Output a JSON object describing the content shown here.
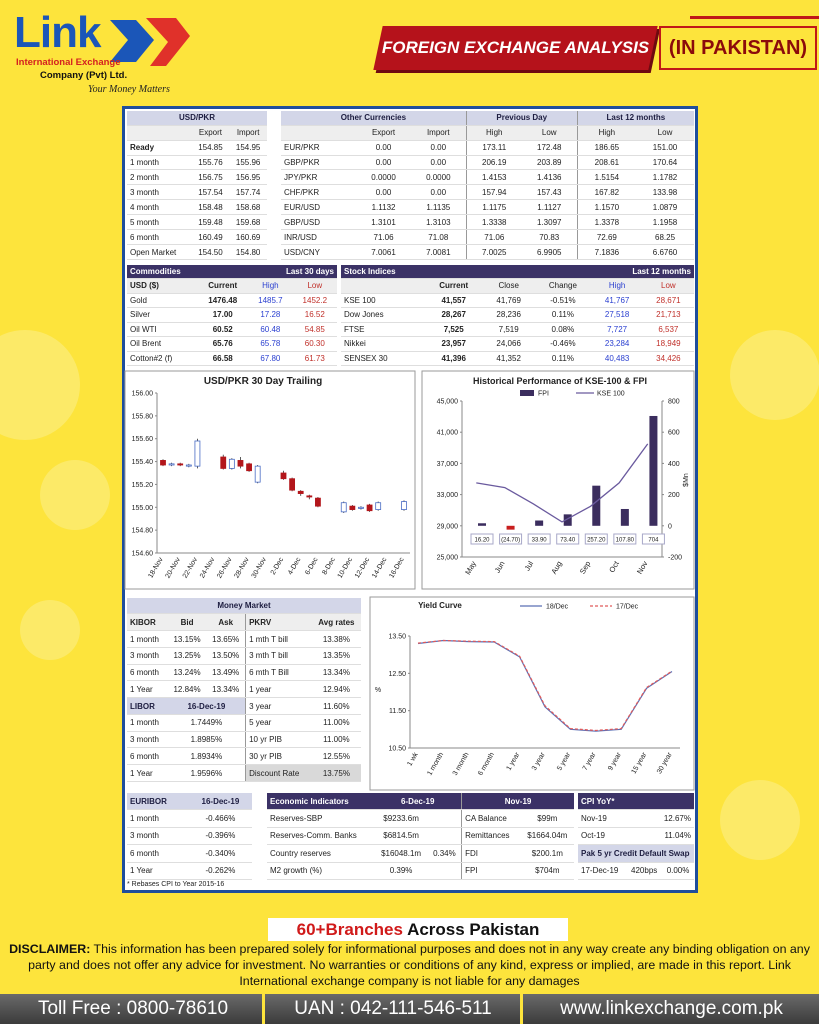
{
  "header": {
    "brand": "Link",
    "company_line1": "International Exchange",
    "company_line2": "Company (Pvt) Ltd.",
    "tagline": "Your Money Matters",
    "title": "FOREIGN EXCHANGE ANALYSIS",
    "subtitle": "(IN PAKISTAN)"
  },
  "usd_pkr": {
    "title": "USD/PKR",
    "columns": [
      "Export",
      "Import"
    ],
    "rows": [
      [
        "Ready",
        "154.85",
        "154.95"
      ],
      [
        "1 month",
        "155.76",
        "155.96"
      ],
      [
        "2 month",
        "156.75",
        "156.95"
      ],
      [
        "3 month",
        "157.54",
        "157.74"
      ],
      [
        "4 month",
        "158.48",
        "158.68"
      ],
      [
        "5 month",
        "159.48",
        "159.68"
      ],
      [
        "6 month",
        "160.49",
        "160.69"
      ],
      [
        "Open Market",
        "154.50",
        "154.80"
      ]
    ]
  },
  "currencies": {
    "groups": [
      "Other Currencies",
      "Previous Day",
      "Last 12 months"
    ],
    "columns": [
      "Export",
      "Import",
      "High",
      "Low",
      "High",
      "Low"
    ],
    "rows": [
      [
        "EUR/PKR",
        "0.00",
        "0.00",
        "173.11",
        "172.48",
        "186.65",
        "151.00"
      ],
      [
        "GBP/PKR",
        "0.00",
        "0.00",
        "206.19",
        "203.89",
        "208.61",
        "170.64"
      ],
      [
        "JPY/PKR",
        "0.0000",
        "0.0000",
        "1.4153",
        "1.4136",
        "1.5154",
        "1.1782"
      ],
      [
        "CHF/PKR",
        "0.00",
        "0.00",
        "157.94",
        "157.43",
        "167.82",
        "133.98"
      ],
      [
        "EUR/USD",
        "1.1132",
        "1.1135",
        "1.1175",
        "1.1127",
        "1.1570",
        "1.0879"
      ],
      [
        "GBP/USD",
        "1.3101",
        "1.3103",
        "1.3338",
        "1.3097",
        "1.3378",
        "1.1958"
      ],
      [
        "INR/USD",
        "71.06",
        "71.08",
        "71.06",
        "70.83",
        "72.69",
        "68.25"
      ],
      [
        "USD/CNY",
        "7.0061",
        "7.0081",
        "7.0025",
        "6.9905",
        "7.1836",
        "6.6760"
      ]
    ]
  },
  "commodities": {
    "title": "Commodities",
    "period": "Last 30 days",
    "columns": [
      "USD ($)",
      "Current",
      "High",
      "Low"
    ],
    "rows": [
      [
        "Gold",
        "1476.48",
        "1485.7",
        "1452.2"
      ],
      [
        "Silver",
        "17.00",
        "17.28",
        "16.52"
      ],
      [
        "Oil WTI",
        "60.52",
        "60.48",
        "54.85"
      ],
      [
        "Oil Brent",
        "65.76",
        "65.78",
        "60.30"
      ],
      [
        "Cotton#2 (f)",
        "66.58",
        "67.80",
        "61.73"
      ]
    ]
  },
  "stocks": {
    "title": "Stock Indices",
    "period": "Last 12 months",
    "columns": [
      "Current",
      "Close",
      "Change",
      "High",
      "Low"
    ],
    "rows": [
      [
        "KSE 100",
        "41,557",
        "41,769",
        "-0.51%",
        "41,767",
        "28,671"
      ],
      [
        "Dow Jones",
        "28,267",
        "28,236",
        "0.11%",
        "27,518",
        "21,713"
      ],
      [
        "FTSE",
        "7,525",
        "7,519",
        "0.08%",
        "7,727",
        "6,537"
      ],
      [
        "Nikkei",
        "23,957",
        "24,066",
        "-0.46%",
        "23,284",
        "18,949"
      ],
      [
        "SENSEX 30",
        "41,396",
        "41,352",
        "0.11%",
        "40,483",
        "34,426"
      ]
    ]
  },
  "chart_data": [
    {
      "type": "candlestick",
      "title": "USD/PKR 30 Day Trailing",
      "categories": [
        "18-Nov",
        null,
        "20-Nov",
        null,
        "22-Nov",
        null,
        "24-Nov",
        null,
        "26-Nov",
        null,
        "28-Nov",
        null,
        "30-Nov",
        null,
        "2-Dec",
        null,
        "4-Dec",
        null,
        "6-Dec",
        null,
        "8-Dec",
        null,
        "10-Dec",
        null,
        "12-Dec",
        null,
        "14-Dec",
        null,
        "16-Dec"
      ],
      "open": [
        155.41,
        155.37,
        155.38,
        155.36,
        155.36,
        null,
        null,
        155.44,
        155.34,
        155.41,
        155.38,
        155.22,
        null,
        null,
        155.3,
        155.25,
        155.14,
        155.1,
        155.08,
        null,
        null,
        154.96,
        155.01,
        154.99,
        155.02,
        154.98,
        null,
        null,
        154.98
      ],
      "high": [
        155.42,
        155.39,
        155.39,
        155.38,
        155.6,
        null,
        null,
        155.46,
        155.43,
        155.44,
        155.39,
        155.37,
        null,
        null,
        155.32,
        155.26,
        155.15,
        155.11,
        155.09,
        null,
        null,
        155.05,
        155.02,
        155.01,
        155.03,
        155.05,
        null,
        null,
        155.06
      ],
      "low": [
        155.36,
        155.36,
        155.36,
        155.35,
        155.34,
        null,
        null,
        155.33,
        155.33,
        155.34,
        155.31,
        155.21,
        null,
        null,
        155.24,
        155.14,
        155.1,
        155.07,
        155.0,
        null,
        null,
        154.95,
        154.97,
        154.98,
        154.96,
        154.97,
        null,
        null,
        154.97
      ],
      "close": [
        155.37,
        155.38,
        155.37,
        155.37,
        155.58,
        null,
        null,
        155.34,
        155.42,
        155.36,
        155.32,
        155.36,
        null,
        null,
        155.25,
        155.15,
        155.12,
        155.09,
        155.01,
        null,
        null,
        155.04,
        154.98,
        155.0,
        154.97,
        155.04,
        null,
        null,
        155.05
      ],
      "up_color": "#4a6cc4",
      "down_color": "#b3161b",
      "ylim": [
        154.6,
        156.0
      ],
      "yticks": [
        {
          "value": 154.6,
          "label": "154.60"
        },
        {
          "value": 154.8,
          "label": "154.80"
        },
        {
          "value": 155.0,
          "label": "155.00"
        },
        {
          "value": 155.2,
          "label": "155.20"
        },
        {
          "value": 155.4,
          "label": "155.40"
        },
        {
          "value": 155.6,
          "label": "155.60"
        },
        {
          "value": 155.8,
          "label": "155.80"
        },
        {
          "value": 156.0,
          "label": "156.00"
        }
      ]
    },
    {
      "type": "bar_line",
      "title": "Historical Performance of KSE-100 & FPI",
      "categories": [
        "May",
        "Jun",
        "Jul",
        "Aug",
        "Sep",
        "Oct",
        "Nov"
      ],
      "series": [
        {
          "name": "FPI",
          "color": "#3b2d5e",
          "negative_color": "#c81e1e",
          "axis": "y2",
          "values": [
            16.2,
            -24.7,
            33.9,
            73.4,
            257.2,
            107.8,
            704
          ],
          "value_labels": [
            "16.20",
            "(24.70)",
            "33.90",
            "73.40",
            "257.20",
            "107.80",
            "704"
          ]
        },
        {
          "name": "KSE 100",
          "color": "#6a5a9e",
          "values": [
            34500,
            33900,
            31800,
            29500,
            31500,
            34500,
            39500
          ]
        }
      ],
      "ylim": [
        25000,
        45000
      ],
      "yticks": [
        {
          "value": 25000,
          "label": "25,000"
        },
        {
          "value": 29000,
          "label": "29,000"
        },
        {
          "value": 33000,
          "label": "33,000"
        },
        {
          "value": 37000,
          "label": "37,000"
        },
        {
          "value": 41000,
          "label": "41,000"
        },
        {
          "value": 45000,
          "label": "45,000"
        }
      ],
      "y2lim": [
        -200,
        800
      ],
      "y2ticks": [
        -200,
        0,
        200,
        400,
        600,
        800
      ],
      "y2label": "$Mn"
    },
    {
      "type": "line",
      "title": "Yield Curve",
      "categories": [
        "1 wk",
        "1 month",
        "3 month",
        "6 month",
        "1 year",
        "3 year",
        "5 year",
        "7 year",
        "9 year",
        "15 year",
        "30 year"
      ],
      "series": [
        {
          "name": "18/Dec",
          "color": "#5b6fb5",
          "values": [
            13.3,
            13.38,
            13.35,
            13.34,
            12.94,
            11.6,
            11.0,
            10.95,
            11.0,
            12.1,
            12.55
          ]
        },
        {
          "name": "17/Dec",
          "color": "#e05a5a",
          "dashed": true,
          "values": [
            13.31,
            13.38,
            13.36,
            13.35,
            12.96,
            11.63,
            11.02,
            10.97,
            11.02,
            12.12,
            12.56
          ]
        }
      ],
      "ylim": [
        10.5,
        13.5
      ],
      "yticks": [
        {
          "value": 10.5,
          "label": "10.50"
        },
        {
          "value": 11.5,
          "label": "11.50"
        },
        {
          "value": 12.5,
          "label": "12.50"
        },
        {
          "value": 13.5,
          "label": "13.50"
        }
      ],
      "ylabel": "%"
    }
  ],
  "money_market": {
    "title": "Money Market",
    "columns": [
      "KIBOR",
      "Bid",
      "Ask",
      "PKRV",
      "Avg rates"
    ],
    "kibor": [
      [
        "1 month",
        "13.15%",
        "13.65%"
      ],
      [
        "3 month",
        "13.25%",
        "13.50%"
      ],
      [
        "6 month",
        "13.24%",
        "13.49%"
      ],
      [
        "1 Year",
        "12.84%",
        "13.34%"
      ]
    ],
    "libor_head": [
      "LIBOR",
      "16-Dec-19"
    ],
    "libor": [
      [
        "1 month",
        "1.7449%"
      ],
      [
        "3 month",
        "1.8985%"
      ],
      [
        "6 month",
        "1.8934%"
      ],
      [
        "1 Year",
        "1.9596%"
      ]
    ],
    "pkrv": [
      [
        "1 mth T bill",
        "13.38%"
      ],
      [
        "3 mth T bill",
        "13.35%"
      ],
      [
        "6 mth T Bill",
        "13.34%"
      ],
      [
        "1 year",
        "12.94%"
      ],
      [
        "3 year",
        "11.60%"
      ],
      [
        "5 year",
        "11.00%"
      ],
      [
        "10 yr PIB",
        "11.00%"
      ],
      [
        "30 yr PIB",
        "12.55%"
      ],
      [
        "Discount Rate",
        "13.75%"
      ]
    ]
  },
  "euribor": {
    "title": "EURIBOR",
    "date": "16-Dec-19",
    "rows": [
      [
        "1 month",
        "-0.466%"
      ],
      [
        "3 month",
        "-0.396%"
      ],
      [
        "6 month",
        "-0.340%"
      ],
      [
        "1 Year",
        "-0.262%"
      ]
    ],
    "note": "* Rebases CPI to Year 2015-16"
  },
  "economic": {
    "title": "Economic Indicators",
    "date": "6-Dec-19",
    "month": "Nov-19",
    "rows": [
      [
        "Reserves-SBP",
        "$9233.6m"
      ],
      [
        "Reserves-Comm. Banks",
        "$6814.5m"
      ],
      [
        "Country reserves",
        "$16048.1m",
        "0.34%"
      ],
      [
        "M2 growth (%)",
        "0.39%"
      ]
    ],
    "monthly_rows": [
      [
        "CA Balance",
        "$99m"
      ],
      [
        "Remittances",
        "$1664.04m"
      ],
      [
        "FDI",
        "$200.1m"
      ],
      [
        "FPI",
        "$704m"
      ]
    ]
  },
  "cpi": {
    "title": "CPI YoY*",
    "rows": [
      [
        "Nov-19",
        "12.67%"
      ],
      [
        "Oct-19",
        "11.04%"
      ]
    ]
  },
  "cds": {
    "title": "Pak 5 yr Credit Default Swap",
    "rows": [
      [
        "17-Dec-19",
        "420bps",
        "0.00%"
      ]
    ]
  },
  "footer": {
    "branches_highlight": "60+Branches",
    "branches_text": "Across Pakistan",
    "disclaimer_label": "DISCLAIMER:",
    "disclaimer": "This information has been prepared solely for informational purposes and does not in any way create any binding obligation on any party and does not offer any advice for investment. No warranties or conditions of any kind, express or implied, are made in this report. Link International exchange company is not liable for any damages",
    "contacts": [
      "Toll Free : 0800-78610",
      "UAN : 042-111-546-511",
      "www.linkexchange.com.pk"
    ]
  }
}
